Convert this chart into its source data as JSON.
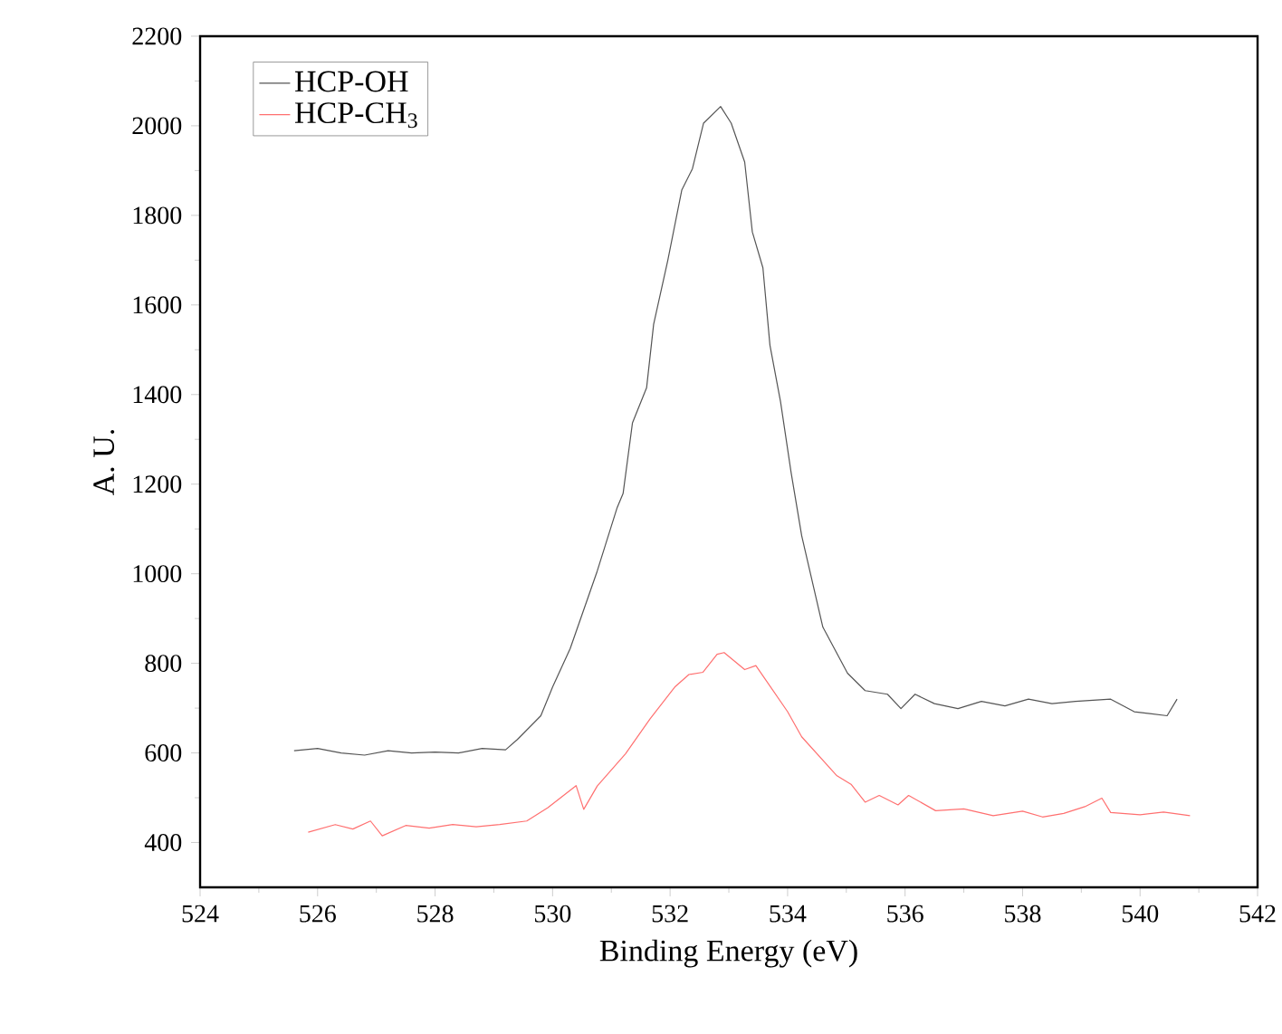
{
  "chart_data": {
    "type": "line",
    "xlabel": "Binding Energy (eV)",
    "ylabel": "A. U.",
    "xlim": [
      524,
      542
    ],
    "ylim": [
      300,
      2200
    ],
    "xticks": [
      524,
      526,
      528,
      530,
      532,
      534,
      536,
      538,
      540,
      542
    ],
    "yticks": [
      400,
      600,
      800,
      1000,
      1200,
      1400,
      1600,
      1800,
      2000,
      2200
    ],
    "legend": "top left",
    "grid": false,
    "marker": "none",
    "line_style": "solid",
    "series": [
      {
        "name": "HCP-OH",
        "color": "#555555",
        "x": [
          525.6,
          526.0,
          526.4,
          526.8,
          527.2,
          527.6,
          528.0,
          528.4,
          528.8,
          529.2,
          529.4,
          529.8,
          530.0,
          530.3,
          530.76,
          531.1,
          531.2,
          531.36,
          531.6,
          531.72,
          531.96,
          532.2,
          532.38,
          532.57,
          532.86,
          533.04,
          533.27,
          533.4,
          533.58,
          533.7,
          533.88,
          534.06,
          534.24,
          534.6,
          535.02,
          535.32,
          535.7,
          535.93,
          536.17,
          536.5,
          536.9,
          537.3,
          537.7,
          538.1,
          538.5,
          538.9,
          539.5,
          539.9,
          540.46,
          540.63
        ],
        "values": [
          605,
          610,
          600,
          595,
          605,
          600,
          602,
          600,
          610,
          607,
          630,
          683,
          747,
          833,
          1006,
          1148,
          1179,
          1337,
          1415,
          1557,
          1699,
          1857,
          1904,
          2006,
          2043,
          2006,
          1919,
          1763,
          1683,
          1510,
          1384,
          1226,
          1085,
          881,
          778,
          739,
          731,
          699,
          731,
          710,
          699,
          715,
          705,
          720,
          710,
          715,
          720,
          692,
          683,
          720
        ]
      },
      {
        "name": "HCP-CH$_{3}$",
        "color": "#ff7070",
        "x": [
          525.84,
          526.3,
          526.6,
          526.9,
          527.1,
          527.5,
          527.9,
          528.3,
          528.7,
          529.1,
          529.56,
          529.92,
          530.4,
          530.53,
          530.76,
          531.24,
          531.66,
          532.08,
          532.32,
          532.56,
          532.8,
          532.92,
          533.27,
          533.46,
          534.0,
          534.24,
          534.84,
          535.08,
          535.32,
          535.56,
          535.88,
          536.06,
          536.52,
          537.0,
          537.5,
          538.0,
          538.34,
          538.7,
          539.06,
          539.35,
          539.5,
          540.0,
          540.4,
          540.85
        ],
        "values": [
          423,
          440,
          430,
          448,
          415,
          438,
          432,
          440,
          435,
          440,
          448,
          478,
          527,
          474,
          526,
          598,
          676,
          747,
          775,
          780,
          820,
          824,
          786,
          795,
          692,
          636,
          549,
          530,
          490,
          505,
          484,
          505,
          471,
          475,
          460,
          470,
          457,
          465,
          480,
          499,
          467,
          462,
          468,
          460
        ]
      }
    ]
  }
}
